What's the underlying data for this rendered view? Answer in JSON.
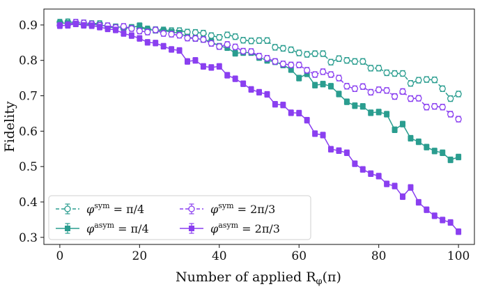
{
  "chart_data": {
    "type": "line",
    "xlabel": "Number of applied Rφ(π)",
    "xlabel_parts": {
      "main": "Number of applied R",
      "sub": "φ",
      "tail": "(π)"
    },
    "ylabel": "Fidelity",
    "xlim": [
      -4,
      104
    ],
    "ylim": [
      0.28,
      0.945
    ],
    "xticks": [
      0,
      20,
      40,
      60,
      80,
      100
    ],
    "xtick_labels": [
      "0",
      "20",
      "40",
      "60",
      "80",
      "100"
    ],
    "yticks": [
      0.3,
      0.4,
      0.5,
      0.6,
      0.7,
      0.8,
      0.9
    ],
    "ytick_labels": [
      "0.3",
      "0.4",
      "0.5",
      "0.6",
      "0.7",
      "0.8",
      "0.9"
    ],
    "legend_position": "lower-left",
    "series": [
      {
        "name": "φsym = π/4",
        "label": {
          "base": "φ",
          "sup": "sym",
          "rest": " = π/4"
        },
        "color": "#2a9d8f",
        "marker": "open-circle",
        "linestyle": "dashed",
        "x": [
          0,
          2,
          4,
          6,
          8,
          10,
          12,
          14,
          16,
          18,
          20,
          22,
          24,
          26,
          28,
          30,
          32,
          34,
          36,
          38,
          40,
          42,
          44,
          46,
          48,
          50,
          52,
          54,
          56,
          58,
          60,
          62,
          64,
          66,
          68,
          70,
          72,
          74,
          76,
          78,
          80,
          82,
          84,
          86,
          88,
          90,
          92,
          94,
          96,
          98,
          100
        ],
        "y": [
          0.908,
          0.909,
          0.907,
          0.906,
          0.904,
          0.904,
          0.894,
          0.892,
          0.89,
          0.893,
          0.891,
          0.889,
          0.887,
          0.886,
          0.884,
          0.884,
          0.88,
          0.879,
          0.877,
          0.87,
          0.865,
          0.872,
          0.867,
          0.857,
          0.855,
          0.856,
          0.856,
          0.837,
          0.834,
          0.83,
          0.821,
          0.817,
          0.819,
          0.819,
          0.795,
          0.805,
          0.8,
          0.797,
          0.797,
          0.778,
          0.778,
          0.765,
          0.763,
          0.763,
          0.735,
          0.744,
          0.746,
          0.745,
          0.72,
          0.692,
          0.705
        ],
        "yerr": 0.008
      },
      {
        "name": "φasym = π/4",
        "label": {
          "base": "φ",
          "sup": "asym",
          "rest": " = π/4"
        },
        "color": "#2a9d8f",
        "marker": "filled-square",
        "linestyle": "solid",
        "x": [
          0,
          2,
          4,
          6,
          8,
          10,
          12,
          14,
          16,
          18,
          20,
          22,
          24,
          26,
          28,
          30,
          32,
          34,
          36,
          38,
          40,
          42,
          44,
          46,
          48,
          50,
          52,
          54,
          56,
          58,
          60,
          62,
          64,
          66,
          68,
          70,
          72,
          74,
          76,
          78,
          80,
          82,
          84,
          86,
          88,
          90,
          92,
          94,
          96,
          98,
          100
        ],
        "y": [
          0.905,
          0.905,
          0.903,
          0.902,
          0.901,
          0.9,
          0.896,
          0.895,
          0.893,
          0.893,
          0.898,
          0.887,
          0.885,
          0.884,
          0.88,
          0.877,
          0.866,
          0.862,
          0.859,
          0.853,
          0.84,
          0.836,
          0.82,
          0.822,
          0.822,
          0.808,
          0.8,
          0.796,
          0.787,
          0.774,
          0.75,
          0.762,
          0.73,
          0.733,
          0.727,
          0.705,
          0.683,
          0.672,
          0.67,
          0.652,
          0.654,
          0.648,
          0.604,
          0.62,
          0.58,
          0.57,
          0.555,
          0.544,
          0.539,
          0.519,
          0.527
        ],
        "yerr": 0.008
      },
      {
        "name": "φsym = 2π/3",
        "label": {
          "base": "φ",
          "sup": "sym",
          "rest": " = 2π/3"
        },
        "color": "#8a3ff0",
        "marker": "open-circle",
        "linestyle": "dashed",
        "x": [
          0,
          2,
          4,
          6,
          8,
          10,
          12,
          14,
          16,
          18,
          20,
          22,
          24,
          26,
          28,
          30,
          32,
          34,
          36,
          38,
          40,
          42,
          44,
          46,
          48,
          50,
          52,
          54,
          56,
          58,
          60,
          62,
          64,
          66,
          68,
          70,
          72,
          74,
          76,
          78,
          80,
          82,
          84,
          86,
          88,
          90,
          92,
          94,
          96,
          98,
          100
        ],
        "y": [
          0.899,
          0.901,
          0.908,
          0.906,
          0.903,
          0.899,
          0.898,
          0.893,
          0.896,
          0.89,
          0.883,
          0.88,
          0.886,
          0.876,
          0.874,
          0.871,
          0.863,
          0.862,
          0.859,
          0.848,
          0.839,
          0.845,
          0.838,
          0.826,
          0.825,
          0.812,
          0.806,
          0.797,
          0.79,
          0.787,
          0.787,
          0.772,
          0.76,
          0.768,
          0.76,
          0.75,
          0.727,
          0.72,
          0.726,
          0.71,
          0.717,
          0.715,
          0.698,
          0.712,
          0.692,
          0.693,
          0.668,
          0.67,
          0.668,
          0.648,
          0.634
        ],
        "yerr": 0.008
      },
      {
        "name": "φasym = 2π/3",
        "label": {
          "base": "φ",
          "sup": "asym",
          "rest": " = 2π/3"
        },
        "color": "#8a3ff0",
        "marker": "filled-square",
        "linestyle": "solid",
        "x": [
          0,
          2,
          4,
          6,
          8,
          10,
          12,
          14,
          16,
          18,
          20,
          22,
          24,
          26,
          28,
          30,
          32,
          34,
          36,
          38,
          40,
          42,
          44,
          46,
          48,
          50,
          52,
          54,
          56,
          58,
          60,
          62,
          64,
          66,
          68,
          70,
          72,
          74,
          76,
          78,
          80,
          82,
          84,
          86,
          88,
          90,
          92,
          94,
          96,
          98,
          100
        ],
        "y": [
          0.898,
          0.899,
          0.903,
          0.899,
          0.898,
          0.894,
          0.889,
          0.886,
          0.876,
          0.87,
          0.862,
          0.851,
          0.849,
          0.84,
          0.831,
          0.828,
          0.797,
          0.8,
          0.783,
          0.78,
          0.783,
          0.758,
          0.748,
          0.734,
          0.718,
          0.71,
          0.704,
          0.676,
          0.674,
          0.652,
          0.651,
          0.631,
          0.593,
          0.589,
          0.549,
          0.545,
          0.539,
          0.508,
          0.492,
          0.48,
          0.473,
          0.451,
          0.445,
          0.415,
          0.441,
          0.399,
          0.378,
          0.361,
          0.349,
          0.342,
          0.316
        ],
        "yerr": 0.008
      }
    ]
  }
}
